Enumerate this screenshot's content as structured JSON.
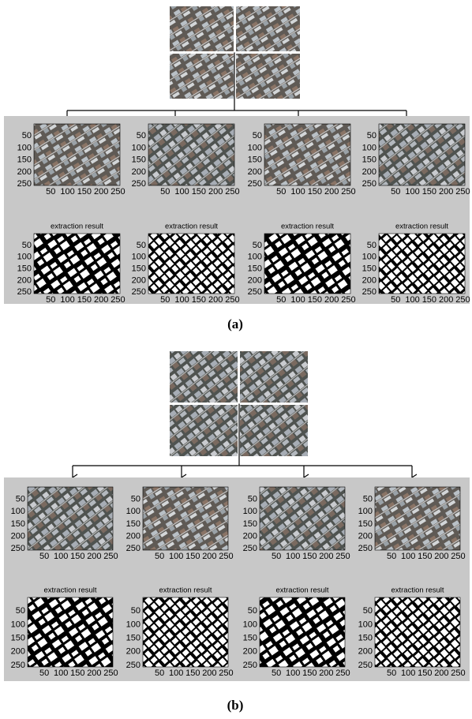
{
  "figure": {
    "panels": [
      {
        "label": "(a)",
        "result_title": "extraction result",
        "yticks": [
          50,
          100,
          150,
          200,
          250
        ],
        "xticks": [
          50,
          100,
          150,
          200,
          250
        ]
      },
      {
        "label": "(b)",
        "result_title": "extraction result",
        "yticks": [
          50,
          100,
          150,
          200,
          250
        ],
        "xticks": [
          50,
          100,
          150,
          200,
          250
        ]
      }
    ]
  }
}
